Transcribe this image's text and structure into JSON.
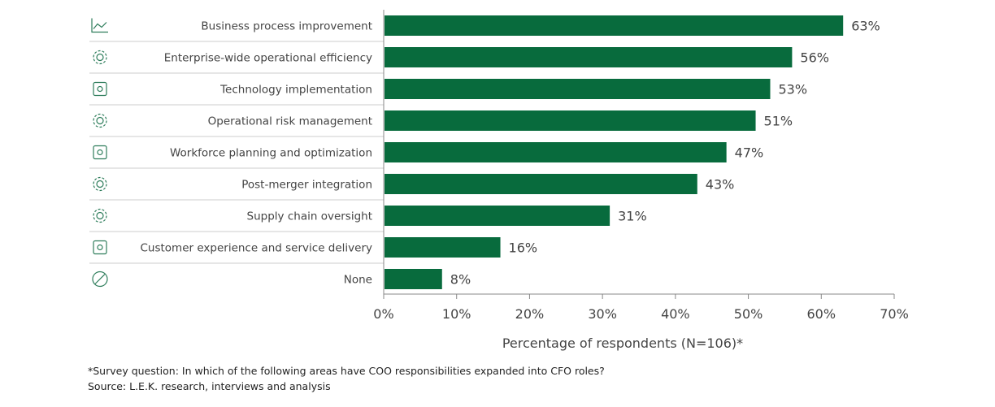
{
  "chart_data": {
    "type": "bar",
    "orientation": "horizontal",
    "categories": [
      "Business process improvement",
      "Enterprise-wide operational efficiency",
      "Technology implementation",
      "Operational risk management",
      "Workforce planning and optimization",
      "Post-merger integration",
      "Supply chain oversight",
      "Customer experience and service delivery",
      "None"
    ],
    "icons": [
      "line-chart-icon",
      "laptop-gear-icon",
      "chip-icon",
      "gears-icon",
      "strategy-play-icon",
      "merge-gear-icon",
      "gear-icon",
      "customer-star-icon",
      "none-icon"
    ],
    "values": [
      63,
      56,
      53,
      51,
      47,
      43,
      31,
      16,
      8
    ],
    "value_labels": [
      "63%",
      "56%",
      "53%",
      "51%",
      "47%",
      "43%",
      "31%",
      "16%",
      "8%"
    ],
    "xlim": [
      0,
      70
    ],
    "xticks": [
      "0%",
      "10%",
      "20%",
      "30%",
      "40%",
      "50%",
      "60%",
      "70%"
    ],
    "xlabel": "Percentage of respondents (N=106)*",
    "grid": false,
    "bar_color": "#086b3d",
    "footnotes": [
      "*Survey question: In which of the following areas have COO responsibilities expanded into CFO roles?",
      "Source: L.E.K. research, interviews and analysis"
    ]
  }
}
